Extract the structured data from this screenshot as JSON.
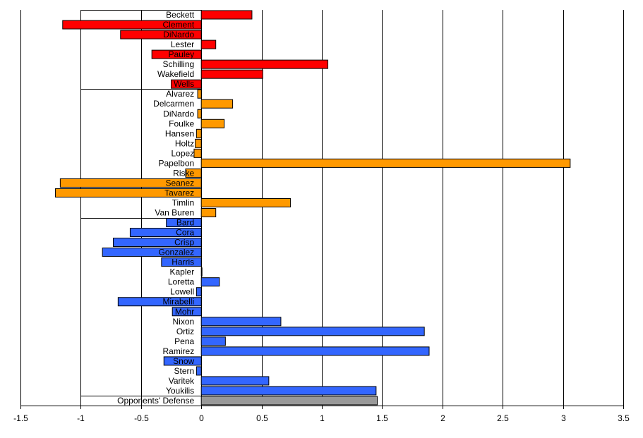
{
  "chart_data": {
    "type": "bar",
    "orientation": "horizontal",
    "title": "",
    "xlabel": "",
    "ylabel": "",
    "xlim": [
      -1.5,
      3.5
    ],
    "x_ticks": [
      "-1.5",
      "-1",
      "-0.5",
      "0",
      "0.5",
      "1",
      "1.5",
      "2",
      "2.5",
      "3",
      "3.5"
    ],
    "grid": "vertical",
    "legend": "none",
    "group_colors": {
      "red": "#ff0000",
      "orange": "#ff9900",
      "blue": "#3366ff",
      "gray": "#999999"
    },
    "bars": [
      {
        "label": "Beckett",
        "value": 0.42,
        "group": "red"
      },
      {
        "label": "Clement",
        "value": -1.15,
        "group": "red"
      },
      {
        "label": "DiNardo",
        "value": -0.67,
        "group": "red"
      },
      {
        "label": "Lester",
        "value": 0.12,
        "group": "red"
      },
      {
        "label": "Pauley",
        "value": -0.41,
        "group": "red"
      },
      {
        "label": "Schilling",
        "value": 1.05,
        "group": "red"
      },
      {
        "label": "Wakefield",
        "value": 0.51,
        "group": "red"
      },
      {
        "label": "Wells",
        "value": -0.25,
        "group": "red"
      },
      {
        "label": "Alvarez",
        "value": -0.03,
        "group": "orange"
      },
      {
        "label": "Delcarmen",
        "value": 0.26,
        "group": "orange"
      },
      {
        "label": "DiNardo",
        "value": -0.03,
        "group": "orange"
      },
      {
        "label": "Foulke",
        "value": 0.19,
        "group": "orange"
      },
      {
        "label": "Hansen",
        "value": -0.04,
        "group": "orange"
      },
      {
        "label": "Holtz",
        "value": -0.05,
        "group": "orange"
      },
      {
        "label": "Lopez",
        "value": -0.06,
        "group": "orange"
      },
      {
        "label": "Papelbon",
        "value": 3.06,
        "group": "orange"
      },
      {
        "label": "Riske",
        "value": -0.13,
        "group": "orange"
      },
      {
        "label": "Seanez",
        "value": -1.17,
        "group": "orange"
      },
      {
        "label": "Tavarez",
        "value": -1.21,
        "group": "orange"
      },
      {
        "label": "Timlin",
        "value": 0.74,
        "group": "orange"
      },
      {
        "label": "Van Buren",
        "value": 0.12,
        "group": "orange"
      },
      {
        "label": "Bard",
        "value": -0.29,
        "group": "blue"
      },
      {
        "label": "Cora",
        "value": -0.59,
        "group": "blue"
      },
      {
        "label": "Crisp",
        "value": -0.73,
        "group": "blue"
      },
      {
        "label": "Gonzalez",
        "value": -0.82,
        "group": "blue"
      },
      {
        "label": "Harris",
        "value": -0.33,
        "group": "blue"
      },
      {
        "label": "Kapler",
        "value": 0.005,
        "group": "blue"
      },
      {
        "label": "Loretta",
        "value": 0.15,
        "group": "blue"
      },
      {
        "label": "Lowell",
        "value": -0.04,
        "group": "blue"
      },
      {
        "label": "Mirabelli",
        "value": -0.69,
        "group": "blue"
      },
      {
        "label": "Mohr",
        "value": -0.24,
        "group": "blue"
      },
      {
        "label": "Nixon",
        "value": 0.66,
        "group": "blue"
      },
      {
        "label": "Ortiz",
        "value": 1.85,
        "group": "blue"
      },
      {
        "label": "Pena",
        "value": 0.2,
        "group": "blue"
      },
      {
        "label": "Ramirez",
        "value": 1.89,
        "group": "blue"
      },
      {
        "label": "Snow",
        "value": -0.31,
        "group": "blue"
      },
      {
        "label": "Stern",
        "value": -0.04,
        "group": "blue"
      },
      {
        "label": "Varitek",
        "value": 0.56,
        "group": "blue"
      },
      {
        "label": "Youkilis",
        "value": 1.45,
        "group": "blue"
      },
      {
        "label": "Opponents' Defense",
        "value": 1.46,
        "group": "gray"
      }
    ]
  }
}
